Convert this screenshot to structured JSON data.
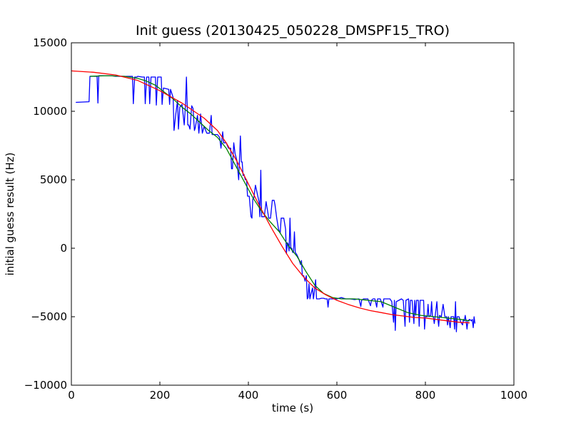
{
  "chart_data": {
    "type": "line",
    "title": "Init guess (20130425_050228_DMSPF15_TRO)",
    "xlabel": "time (s)",
    "ylabel": "initial guess result (Hz)",
    "xlim": [
      0,
      1000
    ],
    "ylim": [
      -10000,
      15000
    ],
    "x_ticks": [
      0,
      200,
      400,
      600,
      800,
      1000
    ],
    "y_ticks": [
      -10000,
      -5000,
      0,
      5000,
      10000,
      15000
    ],
    "grid": false,
    "legend": "none",
    "series": [
      {
        "color": "#0000ff",
        "points": [
          [
            10,
            10650
          ],
          [
            40,
            10700
          ],
          [
            42,
            12550
          ],
          [
            58,
            12550
          ],
          [
            60,
            10600
          ],
          [
            62,
            12600
          ],
          [
            90,
            12600
          ],
          [
            100,
            12550
          ],
          [
            130,
            12550
          ],
          [
            138,
            12550
          ],
          [
            140,
            10550
          ],
          [
            143,
            12500
          ],
          [
            148,
            12500
          ],
          [
            150,
            12550
          ],
          [
            160,
            12500
          ],
          [
            165,
            12500
          ],
          [
            167,
            10550
          ],
          [
            170,
            12500
          ],
          [
            175,
            12500
          ],
          [
            177,
            10550
          ],
          [
            180,
            12500
          ],
          [
            190,
            12500
          ],
          [
            192,
            10450
          ],
          [
            195,
            12500
          ],
          [
            200,
            12500
          ],
          [
            203,
            12500
          ],
          [
            205,
            10500
          ],
          [
            208,
            11700
          ],
          [
            220,
            11600
          ],
          [
            222,
            10500
          ],
          [
            224,
            11600
          ],
          [
            230,
            11000
          ],
          [
            232,
            8600
          ],
          [
            236,
            9800
          ],
          [
            240,
            10800
          ],
          [
            242,
            8700
          ],
          [
            245,
            10300
          ],
          [
            250,
            10500
          ],
          [
            255,
            9000
          ],
          [
            258,
            10600
          ],
          [
            260,
            12500
          ],
          [
            263,
            9000
          ],
          [
            265,
            9000
          ],
          [
            268,
            8700
          ],
          [
            272,
            10400
          ],
          [
            275,
            10200
          ],
          [
            278,
            8600
          ],
          [
            280,
            8800
          ],
          [
            285,
            9700
          ],
          [
            288,
            8400
          ],
          [
            292,
            9800
          ],
          [
            296,
            8400
          ],
          [
            300,
            8900
          ],
          [
            306,
            8400
          ],
          [
            312,
            8400
          ],
          [
            316,
            9700
          ],
          [
            318,
            8300
          ],
          [
            330,
            8300
          ],
          [
            335,
            8100
          ],
          [
            338,
            7300
          ],
          [
            342,
            8500
          ],
          [
            344,
            7700
          ],
          [
            350,
            7700
          ],
          [
            355,
            7300
          ],
          [
            360,
            7300
          ],
          [
            362,
            5800
          ],
          [
            364,
            5800
          ],
          [
            367,
            7700
          ],
          [
            370,
            6900
          ],
          [
            374,
            6400
          ],
          [
            378,
            5000
          ],
          [
            380,
            6600
          ],
          [
            382,
            8200
          ],
          [
            384,
            6300
          ],
          [
            386,
            6300
          ],
          [
            388,
            5300
          ],
          [
            390,
            5400
          ],
          [
            393,
            5000
          ],
          [
            396,
            5000
          ],
          [
            398,
            3800
          ],
          [
            402,
            3800
          ],
          [
            406,
            2300
          ],
          [
            408,
            2200
          ],
          [
            410,
            3600
          ],
          [
            412,
            3600
          ],
          [
            416,
            4600
          ],
          [
            420,
            4000
          ],
          [
            424,
            3400
          ],
          [
            426,
            2300
          ],
          [
            428,
            5700
          ],
          [
            430,
            2300
          ],
          [
            436,
            2300
          ],
          [
            440,
            3400
          ],
          [
            446,
            2200
          ],
          [
            450,
            2200
          ],
          [
            454,
            3500
          ],
          [
            458,
            3500
          ],
          [
            460,
            3200
          ],
          [
            464,
            2200
          ],
          [
            468,
            1400
          ],
          [
            472,
            1100
          ],
          [
            474,
            2200
          ],
          [
            480,
            2200
          ],
          [
            484,
            1400
          ],
          [
            486,
            -400
          ],
          [
            488,
            400
          ],
          [
            490,
            300
          ],
          [
            492,
            -200
          ],
          [
            494,
            2200
          ],
          [
            496,
            0
          ],
          [
            498,
            0
          ],
          [
            500,
            -300
          ],
          [
            502,
            -300
          ],
          [
            504,
            1200
          ],
          [
            506,
            -300
          ],
          [
            510,
            -500
          ],
          [
            514,
            -800
          ],
          [
            518,
            -1200
          ],
          [
            520,
            -900
          ],
          [
            522,
            -2000
          ],
          [
            525,
            -2000
          ],
          [
            528,
            -2400
          ],
          [
            531,
            -2000
          ],
          [
            533,
            -3700
          ],
          [
            535,
            -3600
          ],
          [
            537,
            -2600
          ],
          [
            539,
            -3700
          ],
          [
            541,
            -3400
          ],
          [
            545,
            -2900
          ],
          [
            547,
            -3700
          ],
          [
            549,
            -3200
          ],
          [
            552,
            -2300
          ],
          [
            554,
            -3700
          ],
          [
            560,
            -3700
          ],
          [
            565,
            -3650
          ],
          [
            570,
            -3650
          ],
          [
            574,
            -3700
          ],
          [
            578,
            -3700
          ],
          [
            580,
            -4300
          ],
          [
            582,
            -3700
          ],
          [
            586,
            -3700
          ],
          [
            590,
            -3700
          ],
          [
            600,
            -3700
          ],
          [
            610,
            -3600
          ],
          [
            620,
            -3700
          ],
          [
            630,
            -3700
          ],
          [
            640,
            -3750
          ],
          [
            650,
            -3700
          ],
          [
            654,
            -4250
          ],
          [
            656,
            -3800
          ],
          [
            660,
            -3700
          ],
          [
            665,
            -3700
          ],
          [
            670,
            -3700
          ],
          [
            676,
            -4200
          ],
          [
            678,
            -3800
          ],
          [
            682,
            -3700
          ],
          [
            686,
            -3700
          ],
          [
            690,
            -4300
          ],
          [
            692,
            -3700
          ],
          [
            698,
            -3700
          ],
          [
            704,
            -4300
          ],
          [
            706,
            -3700
          ],
          [
            712,
            -3700
          ],
          [
            716,
            -3700
          ],
          [
            720,
            -3700
          ],
          [
            724,
            -3900
          ],
          [
            728,
            -5400
          ],
          [
            730,
            -3800
          ],
          [
            732,
            -6000
          ],
          [
            734,
            -3900
          ],
          [
            740,
            -3800
          ],
          [
            746,
            -3700
          ],
          [
            750,
            -3800
          ],
          [
            754,
            -5700
          ],
          [
            756,
            -3800
          ],
          [
            762,
            -3700
          ],
          [
            764,
            -5400
          ],
          [
            766,
            -3800
          ],
          [
            770,
            -3800
          ],
          [
            774,
            -5500
          ],
          [
            776,
            -3800
          ],
          [
            778,
            -4900
          ],
          [
            780,
            -3800
          ],
          [
            784,
            -3800
          ],
          [
            786,
            -5700
          ],
          [
            788,
            -3800
          ],
          [
            792,
            -3800
          ],
          [
            796,
            -3800
          ],
          [
            798,
            -5900
          ],
          [
            800,
            -5000
          ],
          [
            804,
            -5000
          ],
          [
            806,
            -4100
          ],
          [
            808,
            -5000
          ],
          [
            812,
            -4900
          ],
          [
            814,
            -3900
          ],
          [
            816,
            -5000
          ],
          [
            818,
            -5000
          ],
          [
            820,
            -5500
          ],
          [
            822,
            -5000
          ],
          [
            826,
            -3900
          ],
          [
            828,
            -5100
          ],
          [
            830,
            -5700
          ],
          [
            832,
            -4900
          ],
          [
            836,
            -5000
          ],
          [
            840,
            -4100
          ],
          [
            844,
            -5000
          ],
          [
            848,
            -5000
          ],
          [
            850,
            -5600
          ],
          [
            852,
            -5000
          ],
          [
            856,
            -5800
          ],
          [
            858,
            -5000
          ],
          [
            864,
            -5000
          ],
          [
            866,
            -5900
          ],
          [
            868,
            -3900
          ],
          [
            870,
            -6100
          ],
          [
            872,
            -5000
          ],
          [
            876,
            -5000
          ],
          [
            880,
            -5400
          ],
          [
            884,
            -5600
          ],
          [
            886,
            -5200
          ],
          [
            888,
            -5300
          ],
          [
            890,
            -4900
          ],
          [
            892,
            -5300
          ],
          [
            894,
            -5900
          ],
          [
            896,
            -5300
          ],
          [
            900,
            -5200
          ],
          [
            904,
            -5300
          ],
          [
            906,
            -5200
          ],
          [
            908,
            -5800
          ],
          [
            910,
            -5000
          ],
          [
            912,
            -5500
          ]
        ]
      },
      {
        "color": "#008000",
        "points": [
          [
            42,
            12550
          ],
          [
            80,
            12600
          ],
          [
            120,
            12550
          ],
          [
            150,
            12400
          ],
          [
            170,
            12200
          ],
          [
            190,
            11900
          ],
          [
            210,
            11400
          ],
          [
            230,
            10900
          ],
          [
            250,
            10300
          ],
          [
            270,
            9800
          ],
          [
            290,
            9200
          ],
          [
            310,
            8600
          ],
          [
            330,
            8100
          ],
          [
            350,
            7300
          ],
          [
            370,
            6100
          ],
          [
            390,
            4900
          ],
          [
            410,
            3700
          ],
          [
            430,
            2700
          ],
          [
            450,
            1900
          ],
          [
            470,
            1200
          ],
          [
            490,
            200
          ],
          [
            510,
            -600
          ],
          [
            530,
            -1700
          ],
          [
            550,
            -2700
          ],
          [
            570,
            -3300
          ],
          [
            590,
            -3600
          ],
          [
            610,
            -3700
          ],
          [
            640,
            -3700
          ],
          [
            670,
            -3800
          ],
          [
            700,
            -3900
          ],
          [
            730,
            -4300
          ],
          [
            760,
            -4700
          ],
          [
            790,
            -4900
          ],
          [
            820,
            -5000
          ],
          [
            850,
            -5100
          ],
          [
            880,
            -5200
          ],
          [
            900,
            -5300
          ]
        ]
      },
      {
        "color": "#ff0000",
        "points": [
          [
            0,
            12950
          ],
          [
            50,
            12850
          ],
          [
            100,
            12650
          ],
          [
            150,
            12250
          ],
          [
            200,
            11500
          ],
          [
            250,
            10600
          ],
          [
            300,
            9500
          ],
          [
            330,
            8600
          ],
          [
            350,
            7700
          ],
          [
            375,
            6300
          ],
          [
            400,
            4700
          ],
          [
            425,
            3100
          ],
          [
            450,
            1600
          ],
          [
            475,
            200
          ],
          [
            500,
            -1100
          ],
          [
            525,
            -2100
          ],
          [
            550,
            -2900
          ],
          [
            575,
            -3400
          ],
          [
            600,
            -3800
          ],
          [
            625,
            -4100
          ],
          [
            650,
            -4350
          ],
          [
            675,
            -4550
          ],
          [
            700,
            -4700
          ],
          [
            725,
            -4850
          ],
          [
            750,
            -4950
          ],
          [
            775,
            -5050
          ],
          [
            800,
            -5100
          ],
          [
            825,
            -5200
          ],
          [
            850,
            -5300
          ],
          [
            875,
            -5400
          ],
          [
            900,
            -5450
          ]
        ]
      }
    ]
  }
}
